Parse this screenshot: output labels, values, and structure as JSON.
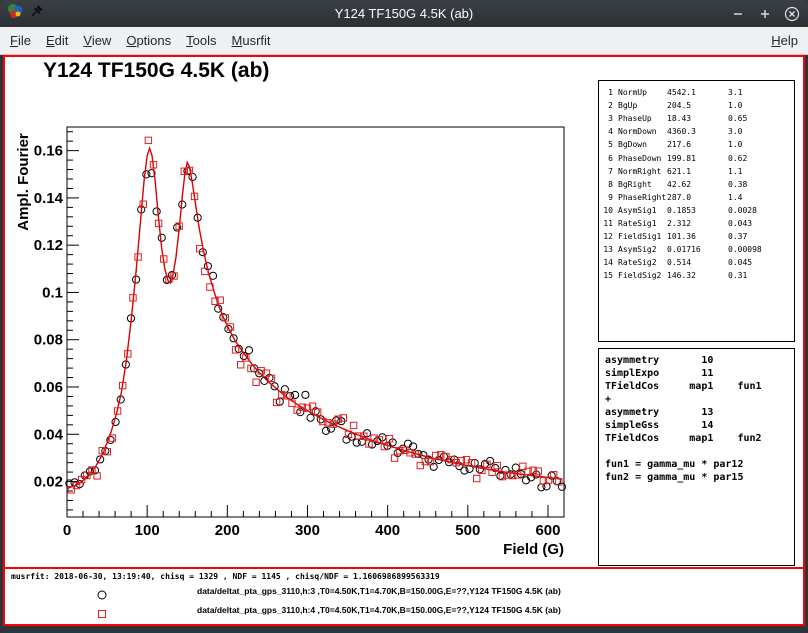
{
  "window": {
    "title": "Y124 TF150G 4.5K (ab)"
  },
  "menubar": {
    "items": [
      "File",
      "Edit",
      "View",
      "Options",
      "Tools",
      "Musrfit"
    ],
    "right_items": [
      "Help"
    ]
  },
  "plot": {
    "title": "Y124 TF150G 4.5K (ab)"
  },
  "parameters": {
    "rows": [
      {
        "idx": "1",
        "name": "NormUp",
        "value": "4542.1",
        "error": "3.1"
      },
      {
        "idx": "2",
        "name": "BgUp",
        "value": "204.5",
        "error": "1.0"
      },
      {
        "idx": "3",
        "name": "PhaseUp",
        "value": "18.43",
        "error": "0.65"
      },
      {
        "idx": "4",
        "name": "NormDown",
        "value": "4360.3",
        "error": "3.0"
      },
      {
        "idx": "5",
        "name": "BgDown",
        "value": "217.6",
        "error": "1.0"
      },
      {
        "idx": "6",
        "name": "PhaseDown",
        "value": "199.81",
        "error": "0.62"
      },
      {
        "idx": "7",
        "name": "NormRight",
        "value": "621.1",
        "error": "1.1"
      },
      {
        "idx": "8",
        "name": "BgRight",
        "value": "42.62",
        "error": "0.38"
      },
      {
        "idx": "9",
        "name": "PhaseRight",
        "value": "287.0",
        "error": "1.4"
      },
      {
        "idx": "10",
        "name": "AsymSig1",
        "value": "0.1853",
        "error": "0.0028"
      },
      {
        "idx": "11",
        "name": "RateSig1",
        "value": "2.312",
        "error": "0.043"
      },
      {
        "idx": "12",
        "name": "FieldSig1",
        "value": "101.36",
        "error": "0.37"
      },
      {
        "idx": "13",
        "name": "AsymSig2",
        "value": "0.01716",
        "error": "0.00098"
      },
      {
        "idx": "14",
        "name": "RateSig2",
        "value": "0.514",
        "error": "0.045"
      },
      {
        "idx": "15",
        "name": "FieldSig2",
        "value": "146.32",
        "error": "0.31"
      }
    ]
  },
  "theory": {
    "lines": [
      "asymmetry       10",
      "simplExpo       11",
      "TFieldCos     map1    fun1",
      "+",
      "asymmetry       13",
      "simpleGss       14",
      "TFieldCos     map1    fun2",
      "",
      "fun1 = gamma_mu * par12",
      "fun2 = gamma_mu * par15"
    ]
  },
  "stats": "musrfit: 2018-06-30, 13:19:40, chisq = 1329 , NDF = 1145 , chisq/NDF = 1.1606986899563319",
  "legend": [
    {
      "marker": "circle",
      "color": "#000000",
      "label": "data/deltat_pta_gps_3110,h:3 ,T0=4.50K,T1=4.70K,B=150.00G,E=??,Y124 TF150G 4.5K (ab)"
    },
    {
      "marker": "square",
      "color": "#e02020",
      "label": "data/deltat_pta_gps_3110,h:4 ,T0=4.50K,T1=4.70K,B=150.00G,E=??,Y124 TF150G 4.5K (ab)"
    }
  ],
  "colors": {
    "canvas_border": "#fb0006",
    "fit_line": "#d90000",
    "series_up": "#000000",
    "series_down": "#e02020",
    "titlebar": "#2f343a",
    "menubar": "#eff0f1"
  },
  "chart_data": {
    "type": "scatter",
    "title": "Y124 TF150G 4.5K (ab)",
    "xlabel": "Field (G)",
    "ylabel": "Ampl. Fourier",
    "xlim": [
      0,
      620
    ],
    "ylim": [
      0.005,
      0.17
    ],
    "xticks": [
      0,
      100,
      200,
      300,
      400,
      500,
      600
    ],
    "yticks": [
      0.02,
      0.04,
      0.06,
      0.08,
      0.1,
      0.12,
      0.14,
      0.16
    ],
    "x_minor_step": 20,
    "y_minor_step": 0.004,
    "grid": false,
    "legend_position": "bottom-pad",
    "fit_curve": {
      "name": "two-signal TF fit (peaks at 101.4 G and 146.3 G)",
      "color": "#d90000",
      "points": [
        [
          0,
          0.017
        ],
        [
          15,
          0.019
        ],
        [
          25,
          0.022
        ],
        [
          35,
          0.026
        ],
        [
          45,
          0.032
        ],
        [
          55,
          0.041
        ],
        [
          62,
          0.049
        ],
        [
          68,
          0.058
        ],
        [
          74,
          0.071
        ],
        [
          80,
          0.088
        ],
        [
          86,
          0.108
        ],
        [
          92,
          0.131
        ],
        [
          96,
          0.147
        ],
        [
          100,
          0.158
        ],
        [
          103,
          0.161
        ],
        [
          106,
          0.158
        ],
        [
          110,
          0.147
        ],
        [
          114,
          0.132
        ],
        [
          118,
          0.119
        ],
        [
          122,
          0.11
        ],
        [
          126,
          0.105
        ],
        [
          129,
          0.104
        ],
        [
          132,
          0.107
        ],
        [
          136,
          0.115
        ],
        [
          140,
          0.127
        ],
        [
          144,
          0.141
        ],
        [
          147,
          0.15
        ],
        [
          150,
          0.155
        ],
        [
          153,
          0.153
        ],
        [
          156,
          0.147
        ],
        [
          160,
          0.138
        ],
        [
          165,
          0.127
        ],
        [
          170,
          0.118
        ],
        [
          176,
          0.109
        ],
        [
          182,
          0.102
        ],
        [
          188,
          0.0955
        ],
        [
          195,
          0.0895
        ],
        [
          202,
          0.0845
        ],
        [
          210,
          0.0795
        ],
        [
          220,
          0.0745
        ],
        [
          230,
          0.07
        ],
        [
          240,
          0.066
        ],
        [
          252,
          0.062
        ],
        [
          264,
          0.0585
        ],
        [
          276,
          0.0552
        ],
        [
          290,
          0.052
        ],
        [
          305,
          0.049
        ],
        [
          320,
          0.0462
        ],
        [
          335,
          0.0438
        ],
        [
          350,
          0.0415
        ],
        [
          365,
          0.0395
        ],
        [
          380,
          0.0375
        ],
        [
          395,
          0.0358
        ],
        [
          410,
          0.0342
        ],
        [
          425,
          0.0327
        ],
        [
          440,
          0.0313
        ],
        [
          455,
          0.03
        ],
        [
          470,
          0.0288
        ],
        [
          485,
          0.0277
        ],
        [
          500,
          0.0267
        ],
        [
          515,
          0.0258
        ],
        [
          530,
          0.0249
        ],
        [
          545,
          0.0241
        ],
        [
          560,
          0.0234
        ],
        [
          575,
          0.0227
        ],
        [
          590,
          0.0221
        ],
        [
          605,
          0.0215
        ],
        [
          618,
          0.021
        ]
      ]
    },
    "series": [
      {
        "name": "h:3",
        "marker": "circle",
        "color": "#000000",
        "seed": 41,
        "x0": 3,
        "dx": 6.4,
        "note": "points scatter around fit_curve"
      },
      {
        "name": "h:4",
        "marker": "square",
        "color": "#e02020",
        "seed": 77,
        "x0": 5.5,
        "dx": 6.4,
        "note": "points scatter around fit_curve"
      }
    ]
  }
}
